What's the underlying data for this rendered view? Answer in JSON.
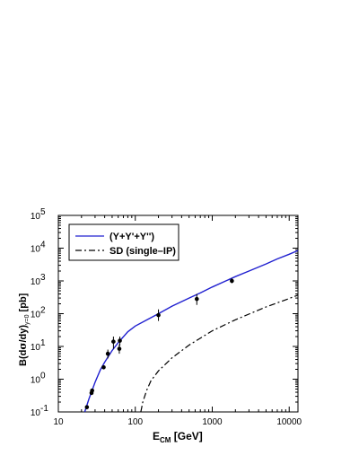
{
  "chart_data": {
    "type": "line",
    "xscale": "log",
    "yscale": "log",
    "xlim": [
      10,
      13000
    ],
    "ylim": [
      0.1,
      100000
    ],
    "xlabel": {
      "main": "E",
      "sub": "CM",
      "rest": " [GeV]"
    },
    "ylabel": {
      "pre": "B(d",
      "sigma": "σ",
      "mid": "/dy)",
      "sub": "y=0",
      "rest": " [pb]"
    },
    "x_ticks": [
      {
        "value": 10,
        "label": "10"
      },
      {
        "value": 100,
        "label": "100"
      },
      {
        "value": 1000,
        "label": "1000"
      },
      {
        "value": 10000,
        "label": "10000"
      }
    ],
    "y_ticks": [
      {
        "value": 0.1,
        "base": "10",
        "exp": "-1"
      },
      {
        "value": 1,
        "base": "10",
        "exp": "0"
      },
      {
        "value": 10,
        "base": "10",
        "exp": "1"
      },
      {
        "value": 100,
        "base": "10",
        "exp": "2"
      },
      {
        "value": 1000,
        "base": "10",
        "exp": "3"
      },
      {
        "value": 10000,
        "base": "10",
        "exp": "4"
      },
      {
        "value": 100000,
        "base": "10",
        "exp": "5"
      }
    ],
    "legend": {
      "placement": "top-left",
      "entries": [
        {
          "label": "(Υ+Υ'+Υ'')",
          "style": "solid",
          "color": "#2020d0"
        },
        {
          "label": "SD (single–IP)",
          "style": "dashdot",
          "color": "#000000"
        }
      ]
    },
    "series": [
      {
        "label_ref": 0,
        "color": "#2020d0",
        "style": "solid",
        "x": [
          22,
          25,
          30,
          35,
          40,
          50,
          60,
          80,
          100,
          150,
          200,
          300,
          500,
          700,
          1000,
          1500,
          2000,
          3000,
          5000,
          7000,
          10000,
          13000
        ],
        "y": [
          0.1,
          0.25,
          0.8,
          1.9,
          3.3,
          7.5,
          13,
          28,
          42,
          70,
          100,
          170,
          300,
          430,
          650,
          1000,
          1350,
          2000,
          3300,
          4700,
          6500,
          8500
        ]
      },
      {
        "label_ref": 1,
        "color": "#000000",
        "style": "dashdot",
        "x": [
          118,
          125,
          140,
          160,
          200,
          300,
          500,
          1000,
          2000,
          5000,
          10000,
          13000
        ],
        "y": [
          0.1,
          0.2,
          0.45,
          0.9,
          1.8,
          4.5,
          11,
          30,
          65,
          160,
          290,
          370
        ]
      }
    ],
    "points": [
      {
        "x": 23.5,
        "y": 0.14,
        "lo": 0.12,
        "hi": 0.16
      },
      {
        "x": 27,
        "y": 0.38,
        "lo": 0.34,
        "hi": 0.43
      },
      {
        "x": 27.5,
        "y": 0.45,
        "lo": 0.41,
        "hi": 0.5
      },
      {
        "x": 38.8,
        "y": 2.3,
        "lo": 2.1,
        "hi": 2.5
      },
      {
        "x": 44,
        "y": 6,
        "lo": 4.3,
        "hi": 8
      },
      {
        "x": 52,
        "y": 14,
        "lo": 8.5,
        "hi": 20
      },
      {
        "x": 62,
        "y": 8.5,
        "lo": 6,
        "hi": 11.5
      },
      {
        "x": 63,
        "y": 15,
        "lo": 10.5,
        "hi": 20
      },
      {
        "x": 200,
        "y": 90,
        "lo": 60,
        "hi": 135
      },
      {
        "x": 630,
        "y": 280,
        "lo": 185,
        "hi": 400
      },
      {
        "x": 1800,
        "y": 1000,
        "lo": 850,
        "hi": 1200
      }
    ]
  }
}
